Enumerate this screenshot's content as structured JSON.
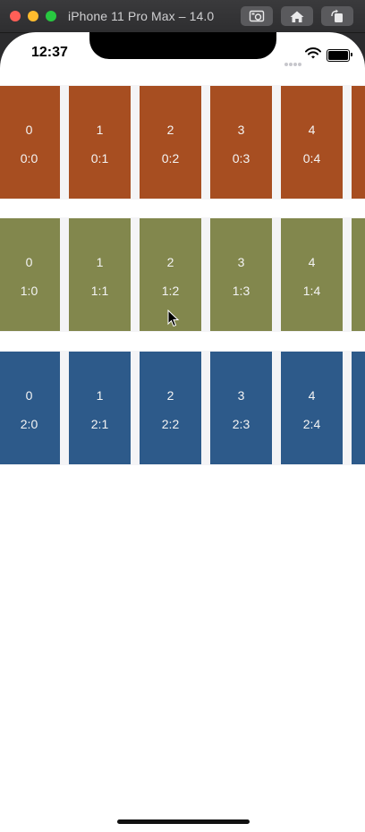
{
  "window": {
    "title": "iPhone 11 Pro Max – 14.0"
  },
  "toolbar": {
    "screenshot_icon": "camera-icon",
    "home_icon": "home-icon",
    "rotate_icon": "rotate-icon"
  },
  "status_bar": {
    "time": "12:37"
  },
  "colors": {
    "row0": "#a74e21",
    "row1": "#82874d",
    "row2": "#2d5a8a"
  },
  "rows": [
    {
      "cards": [
        {
          "index": "0",
          "label": "0:0"
        },
        {
          "index": "1",
          "label": "0:1"
        },
        {
          "index": "2",
          "label": "0:2"
        },
        {
          "index": "3",
          "label": "0:3"
        },
        {
          "index": "4",
          "label": "0:4"
        },
        {
          "index": "",
          "label": ""
        }
      ]
    },
    {
      "cards": [
        {
          "index": "0",
          "label": "1:0"
        },
        {
          "index": "1",
          "label": "1:1"
        },
        {
          "index": "2",
          "label": "1:2"
        },
        {
          "index": "3",
          "label": "1:3"
        },
        {
          "index": "4",
          "label": "1:4"
        },
        {
          "index": "",
          "label": ""
        }
      ]
    },
    {
      "cards": [
        {
          "index": "0",
          "label": "2:0"
        },
        {
          "index": "1",
          "label": "2:1"
        },
        {
          "index": "2",
          "label": "2:2"
        },
        {
          "index": "3",
          "label": "2:3"
        },
        {
          "index": "4",
          "label": "2:4"
        },
        {
          "index": "",
          "label": ""
        }
      ]
    }
  ]
}
